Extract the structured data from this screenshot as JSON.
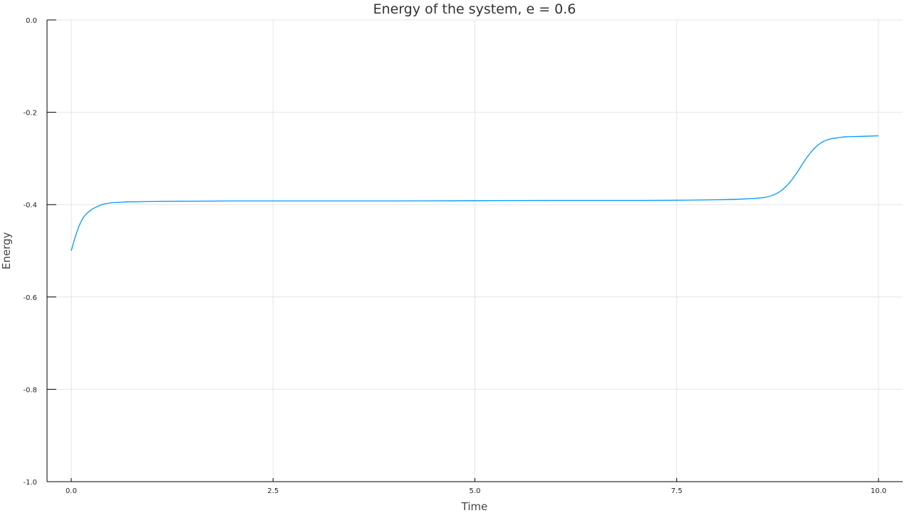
{
  "chart_data": {
    "type": "line",
    "title": "Energy of the system, e = 0.6",
    "xlabel": "Time",
    "ylabel": "Energy",
    "xlim": [
      -0.3,
      10.3
    ],
    "ylim": [
      -1.0,
      0.0
    ],
    "xticks": [
      0.0,
      2.5,
      5.0,
      7.5,
      10.0
    ],
    "xtick_labels": [
      "0.0",
      "2.5",
      "5.0",
      "7.5",
      "10.0"
    ],
    "yticks": [
      0.0,
      -0.2,
      -0.4,
      -0.6,
      -0.8,
      -1.0
    ],
    "ytick_labels": [
      "0.0",
      "-0.2",
      "-0.4",
      "-0.6",
      "-0.8",
      "-1.0"
    ],
    "grid": true,
    "legend": "none",
    "series": [
      {
        "color": "#009AFA",
        "x": [
          0.0,
          0.05,
          0.1,
          0.15,
          0.2,
          0.25,
          0.3,
          0.35,
          0.4,
          0.5,
          0.6,
          0.7,
          0.8,
          1.0,
          1.5,
          2.0,
          3.0,
          4.0,
          5.0,
          6.0,
          7.0,
          7.5,
          8.0,
          8.3,
          8.5,
          8.6,
          8.7,
          8.8,
          8.9,
          9.0,
          9.1,
          9.2,
          9.3,
          9.4,
          9.5,
          9.6,
          9.8,
          10.0
        ],
        "y": [
          -0.5,
          -0.47,
          -0.445,
          -0.428,
          -0.418,
          -0.411,
          -0.406,
          -0.402,
          -0.399,
          -0.396,
          -0.395,
          -0.394,
          -0.394,
          -0.393,
          -0.3925,
          -0.392,
          -0.392,
          -0.392,
          -0.3915,
          -0.391,
          -0.391,
          -0.3905,
          -0.3895,
          -0.388,
          -0.386,
          -0.384,
          -0.379,
          -0.369,
          -0.352,
          -0.328,
          -0.301,
          -0.279,
          -0.265,
          -0.258,
          -0.255,
          -0.253,
          -0.252,
          -0.251
        ]
      }
    ]
  }
}
